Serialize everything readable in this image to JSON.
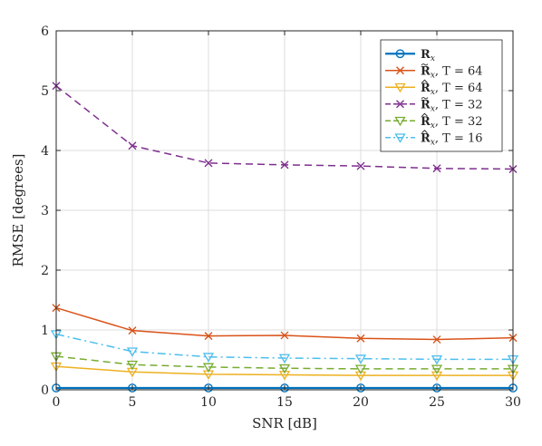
{
  "chart_data": {
    "type": "line",
    "title": "",
    "xlabel": "SNR [dB]",
    "ylabel": "RMSE [degrees]",
    "xlim": [
      0,
      30
    ],
    "ylim": [
      0,
      6
    ],
    "xticks": [
      0,
      5,
      10,
      15,
      20,
      25,
      30
    ],
    "yticks": [
      0,
      1,
      2,
      3,
      4,
      5,
      6
    ],
    "grid": true,
    "legend_position": "top-right",
    "x": [
      0,
      5,
      10,
      15,
      20,
      25,
      30
    ],
    "series": [
      {
        "name": "R_x",
        "legend_label": {
          "symbol": "R",
          "subscript": "x",
          "accent": "",
          "suffix": ""
        },
        "values": [
          0.03,
          0.03,
          0.03,
          0.03,
          0.03,
          0.03,
          0.03
        ],
        "color": "#0072BD",
        "dash": "solid",
        "marker": "circle",
        "linewidth": 2.2
      },
      {
        "name": "R̃_x, T = 64",
        "legend_label": {
          "symbol": "R",
          "subscript": "x",
          "accent": "tilde",
          "suffix": ",  T = 64"
        },
        "values": [
          1.37,
          0.99,
          0.9,
          0.91,
          0.86,
          0.84,
          0.87
        ],
        "color": "#D95319",
        "dash": "solid",
        "marker": "x",
        "linewidth": 1.5
      },
      {
        "name": "R̂_x, T = 64",
        "legend_label": {
          "symbol": "R",
          "subscript": "x",
          "accent": "hat",
          "suffix": ",  T = 64"
        },
        "values": [
          0.39,
          0.3,
          0.26,
          0.25,
          0.24,
          0.24,
          0.24
        ],
        "color": "#EDB120",
        "dash": "solid",
        "marker": "triangle-down",
        "linewidth": 1.5
      },
      {
        "name": "R̃_x, T = 32",
        "legend_label": {
          "symbol": "R",
          "subscript": "x",
          "accent": "tilde",
          "suffix": ",  T = 32"
        },
        "values": [
          5.08,
          4.08,
          3.79,
          3.76,
          3.74,
          3.7,
          3.69
        ],
        "color": "#7E2F8E",
        "dash": "dashed",
        "marker": "x",
        "linewidth": 1.5
      },
      {
        "name": "R̂_x, T = 32",
        "legend_label": {
          "symbol": "R",
          "subscript": "x",
          "accent": "hat",
          "suffix": ",  T = 32"
        },
        "values": [
          0.56,
          0.42,
          0.38,
          0.36,
          0.35,
          0.35,
          0.35
        ],
        "color": "#77AC30",
        "dash": "dashed",
        "marker": "triangle-down",
        "linewidth": 1.5
      },
      {
        "name": "R̂_x, T = 16",
        "legend_label": {
          "symbol": "R",
          "subscript": "x",
          "accent": "hat",
          "suffix": ",  T = 16"
        },
        "values": [
          0.93,
          0.64,
          0.55,
          0.53,
          0.52,
          0.51,
          0.51
        ],
        "color": "#4DBEEE",
        "dash": "dashdot",
        "marker": "triangle-down",
        "linewidth": 1.5
      }
    ]
  }
}
